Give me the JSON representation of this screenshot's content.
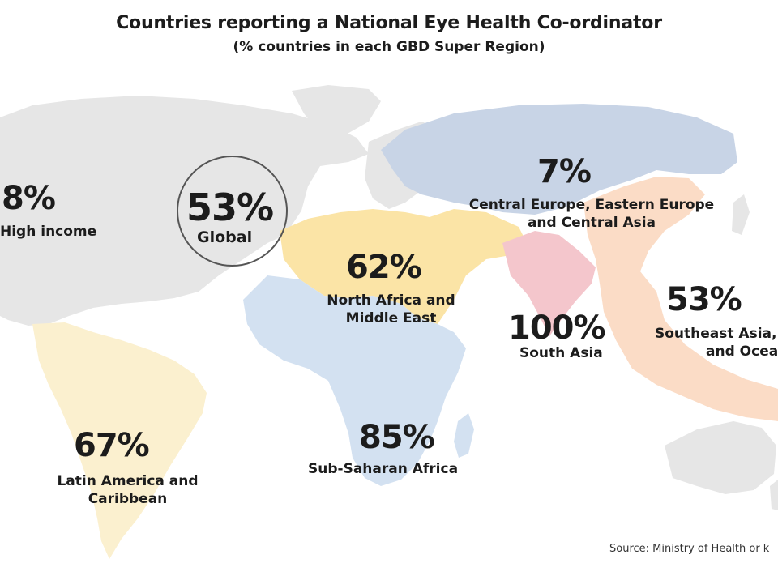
{
  "title": "Countries reporting a National Eye Health Co-ordinator",
  "subtitle": "(% countries in each GBD Super Region)",
  "regions": {
    "high_income": {
      "value": "8%",
      "label": "High income",
      "color": "#e6e6e6"
    },
    "global": {
      "value": "53%",
      "label": "Global"
    },
    "ceeca": {
      "value": "7%",
      "label_line1": "Central Europe, Eastern Europe",
      "label_line2": "and Central Asia",
      "color": "#c8d4e6"
    },
    "nafme": {
      "value": "62%",
      "label_line1": "North Africa and",
      "label_line2": "Middle East",
      "color": "#fbe4a6"
    },
    "south_asia": {
      "value": "100%",
      "label": "South Asia",
      "color": "#f4c6cc"
    },
    "seao": {
      "value": "53%",
      "label_line1": "Southeast Asia,",
      "label_line2": "and Ocea",
      "color": "#fbdcc6"
    },
    "lac": {
      "value": "67%",
      "label_line1": "Latin America and",
      "label_line2": "Caribbean",
      "color": "#fbf0cf"
    },
    "ssa": {
      "value": "85%",
      "label": "Sub-Saharan Africa",
      "color": "#d3e1f1"
    }
  },
  "source": "Source: Ministry of Health or k"
}
